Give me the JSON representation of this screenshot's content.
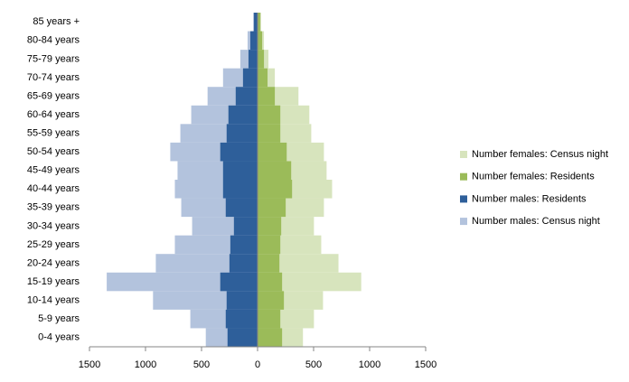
{
  "chart_data": {
    "type": "pyramid",
    "categories": [
      "0-4 years",
      "5-9 years",
      "10-14 years",
      "15-19 years",
      "20-24 years",
      "25-29 years",
      "30-34 years",
      "35-39 years",
      "40-44 years",
      "45-49 years",
      "50-54 years",
      "55-59 years",
      "60-64 years",
      "65-69 years",
      "70-74 years",
      "75-79 years",
      "80-84 years",
      "85 years +"
    ],
    "series": [
      {
        "name": "Number females: Census night",
        "color": "#d7e4bd",
        "values": [
          405,
          503,
          584,
          925,
          722,
          568,
          503,
          592,
          665,
          616,
          592,
          479,
          462,
          365,
          154,
          97,
          57,
          32
        ]
      },
      {
        "name": "Number females: Residents",
        "color": "#9bbb59",
        "values": [
          219,
          203,
          235,
          219,
          195,
          203,
          211,
          251,
          308,
          300,
          260,
          203,
          203,
          154,
          89,
          57,
          41,
          24
        ]
      },
      {
        "name": "Number males: Residents",
        "color": "#2e5f9a",
        "values": [
          -268,
          -284,
          -276,
          -333,
          -251,
          -243,
          -211,
          -284,
          -308,
          -308,
          -333,
          -276,
          -260,
          -195,
          -130,
          -81,
          -65,
          -32
        ]
      },
      {
        "name": "Number males: Census night",
        "color": "#b3c3dd",
        "values": [
          -462,
          -600,
          -933,
          -1346,
          -908,
          -738,
          -584,
          -681,
          -738,
          -714,
          -779,
          -689,
          -592,
          -446,
          -308,
          -154,
          -89,
          -40
        ]
      }
    ],
    "xlim": [
      -1500,
      1500
    ],
    "xticks": [
      {
        "value": -1500,
        "label": "1500"
      },
      {
        "value": -1000,
        "label": "1000"
      },
      {
        "value": -500,
        "label": "500"
      },
      0,
      500,
      1000,
      1500
    ],
    "legend": "right"
  }
}
